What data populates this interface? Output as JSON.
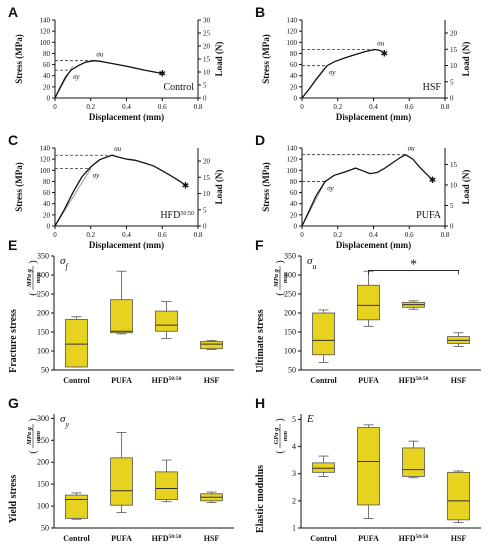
{
  "colors": {
    "box_fill": "#e6d21f",
    "box_stroke": "#555555",
    "curve": "#111111",
    "fit_line": "#9a9a9a",
    "dash": "#333333"
  },
  "chart_data": [
    {
      "panel": "A",
      "type": "line",
      "xlabel": "Displacement (mm)",
      "ylabel": "Stress (MPa)",
      "ylabel_right": "Load (N)",
      "xticks": [
        "0",
        "0.2",
        "0.4",
        "0.6",
        "0.8"
      ],
      "yticks": [
        "0",
        "20",
        "40",
        "60",
        "80",
        "100",
        "120",
        "140"
      ],
      "yticks_right": [
        "0",
        "5",
        "10",
        "15",
        "20",
        "25",
        "30"
      ],
      "xlim": [
        0,
        0.8
      ],
      "ylim": [
        0,
        140
      ],
      "ylim_right": [
        0,
        30
      ],
      "curve_label": "Control",
      "sigma_u_label": "σu",
      "sigma_y_label": "σy",
      "sigma_u": {
        "x": 0.22,
        "y": 67
      },
      "sigma_y": {
        "x": 0.09,
        "y": 50
      },
      "series": [
        {
          "x": [
            0,
            0.03,
            0.06,
            0.09,
            0.13,
            0.17,
            0.2,
            0.22,
            0.25,
            0.3,
            0.4,
            0.5,
            0.6
          ],
          "y": [
            0,
            20,
            38,
            50,
            58,
            64,
            66,
            67,
            66,
            63,
            57,
            50,
            44
          ]
        }
      ],
      "fit_line": {
        "x": [
          0,
          0.1
        ],
        "y": [
          0,
          58
        ]
      }
    },
    {
      "panel": "B",
      "type": "line",
      "xlabel": "Displacement (mm)",
      "ylabel": "Stress (MPa)",
      "ylabel_right": "Load (N)",
      "xticks": [
        "0",
        "0.2",
        "0.4",
        "0.6",
        "0.8"
      ],
      "yticks": [
        "0",
        "20",
        "40",
        "60",
        "80",
        "100",
        "120",
        "140"
      ],
      "yticks_right": [
        "0",
        "5",
        "10",
        "15",
        "20"
      ],
      "xlim": [
        0,
        0.8
      ],
      "ylim": [
        0,
        140
      ],
      "ylim_right": [
        0,
        24
      ],
      "curve_label": "HSF",
      "sigma_u_label": "σu",
      "sigma_y_label": "σy",
      "sigma_u": {
        "x": 0.41,
        "y": 87
      },
      "sigma_y": {
        "x": 0.14,
        "y": 58
      },
      "series": [
        {
          "x": [
            0,
            0.04,
            0.08,
            0.12,
            0.14,
            0.18,
            0.24,
            0.3,
            0.36,
            0.41,
            0.44,
            0.46
          ],
          "y": [
            0,
            16,
            34,
            50,
            58,
            65,
            72,
            78,
            84,
            87,
            85,
            80
          ]
        }
      ],
      "fit_line": {
        "x": [
          0,
          0.14
        ],
        "y": [
          0,
          57
        ]
      }
    },
    {
      "panel": "C",
      "type": "line",
      "xlabel": "Displacement (mm)",
      "ylabel": "Stress (MPa)",
      "ylabel_right": "Load (N)",
      "xticks": [
        "0",
        "0.2",
        "0.4",
        "0.6",
        "0.8"
      ],
      "yticks": [
        "0",
        "20",
        "40",
        "60",
        "80",
        "100",
        "120",
        "140"
      ],
      "yticks_right": [
        "0",
        "5",
        "10",
        "15",
        "20"
      ],
      "xlim": [
        0,
        0.8
      ],
      "ylim": [
        0,
        140
      ],
      "ylim_right": [
        0,
        24
      ],
      "curve_label": "HFD",
      "curve_label_sup": "50:50",
      "sigma_u_label": "σu",
      "sigma_y_label": "σy",
      "sigma_u": {
        "x": 0.32,
        "y": 127
      },
      "sigma_y": {
        "x": 0.2,
        "y": 103
      },
      "series": [
        {
          "x": [
            0,
            0.05,
            0.1,
            0.15,
            0.2,
            0.25,
            0.3,
            0.32,
            0.35,
            0.4,
            0.45,
            0.5,
            0.55,
            0.6,
            0.65,
            0.7,
            0.73
          ],
          "y": [
            0,
            28,
            60,
            88,
            106,
            119,
            125,
            127,
            124,
            120,
            118,
            113,
            108,
            99,
            90,
            80,
            73
          ]
        }
      ],
      "fit_line": {
        "x": [
          0,
          0.2
        ],
        "y": [
          0,
          103
        ]
      }
    },
    {
      "panel": "D",
      "type": "line",
      "xlabel": "Displacement (mm)",
      "ylabel": "Stress (MPa)",
      "ylabel_right": "Load (N)",
      "xticks": [
        "0",
        "0.2",
        "0.4",
        "0.6",
        "0.8"
      ],
      "yticks": [
        "0",
        "20",
        "40",
        "60",
        "80",
        "100",
        "120",
        "140"
      ],
      "yticks_right": [
        "0",
        "5",
        "10",
        "15"
      ],
      "xlim": [
        0,
        0.8
      ],
      "ylim": [
        0,
        140
      ],
      "ylim_right": [
        0,
        19
      ],
      "curve_label": "PUFA",
      "sigma_u_label": "σu",
      "sigma_y_label": "σy",
      "sigma_u": {
        "x": 0.58,
        "y": 128
      },
      "sigma_y": {
        "x": 0.13,
        "y": 80
      },
      "series": [
        {
          "x": [
            0,
            0.04,
            0.08,
            0.13,
            0.18,
            0.24,
            0.3,
            0.34,
            0.38,
            0.42,
            0.46,
            0.5,
            0.55,
            0.58,
            0.62,
            0.66,
            0.7,
            0.73
          ],
          "y": [
            0,
            27,
            55,
            80,
            91,
            97,
            104,
            99,
            94,
            96,
            103,
            112,
            123,
            128,
            120,
            105,
            92,
            83
          ]
        }
      ],
      "fit_line": {
        "x": [
          0,
          0.13
        ],
        "y": [
          0,
          80
        ]
      }
    },
    {
      "panel": "E",
      "type": "box",
      "symbol_main": "σ",
      "symbol_sub": "f",
      "ylabel": "Fracture stress",
      "ylabel_unit_num": "MPa g",
      "ylabel_unit_den": "mm",
      "categories": [
        "Control",
        "PUFA",
        "HFD",
        "HSF"
      ],
      "category_sup": {
        "HFD": "50:50"
      },
      "yticks": [
        "50",
        "100",
        "150",
        "200",
        "250",
        "300",
        "350"
      ],
      "ylim": [
        50,
        350
      ],
      "boxes": [
        {
          "min": 58,
          "q1": 58,
          "median": 118,
          "q3": 183,
          "max": 190
        },
        {
          "min": 145,
          "q1": 148,
          "median": 152,
          "q3": 235,
          "max": 310
        },
        {
          "min": 133,
          "q1": 152,
          "median": 168,
          "q3": 205,
          "max": 230
        },
        {
          "min": 104,
          "q1": 106,
          "median": 118,
          "q3": 125,
          "max": 128
        }
      ]
    },
    {
      "panel": "F",
      "type": "box",
      "symbol_main": "σ",
      "symbol_sub": "u",
      "ylabel": "Ultimate stress",
      "ylabel_unit_num": "MPa g",
      "ylabel_unit_den": "mm",
      "categories": [
        "Control",
        "PUFA",
        "HFD",
        "HSF"
      ],
      "category_sup": {
        "HFD": "50:50"
      },
      "yticks": [
        "50",
        "100",
        "150",
        "200",
        "250",
        "300",
        "350"
      ],
      "ylim": [
        50,
        350
      ],
      "boxes": [
        {
          "min": 70,
          "q1": 90,
          "median": 128,
          "q3": 200,
          "max": 208
        },
        {
          "min": 165,
          "q1": 182,
          "median": 220,
          "q3": 273,
          "max": 310
        },
        {
          "min": 210,
          "q1": 215,
          "median": 222,
          "q3": 228,
          "max": 232
        },
        {
          "min": 112,
          "q1": 120,
          "median": 128,
          "q3": 138,
          "max": 148
        }
      ],
      "significance": {
        "from": 1,
        "to": 3,
        "label": "*",
        "y": 312
      }
    },
    {
      "panel": "G",
      "type": "box",
      "symbol_main": "σ",
      "symbol_sub": "y",
      "ylabel": "Yield stress",
      "ylabel_unit_num": "MPa g",
      "ylabel_unit_den": "mm",
      "categories": [
        "Control",
        "PUFA",
        "HFD",
        "HSF"
      ],
      "category_sup": {
        "HFD": "50:50"
      },
      "yticks": [
        "50",
        "100",
        "150",
        "200",
        "250",
        "300"
      ],
      "ylim": [
        50,
        310
      ],
      "boxes": [
        {
          "min": 70,
          "q1": 72,
          "median": 115,
          "q3": 125,
          "max": 130
        },
        {
          "min": 85,
          "q1": 102,
          "median": 135,
          "q3": 210,
          "max": 268
        },
        {
          "min": 110,
          "q1": 115,
          "median": 140,
          "q3": 178,
          "max": 205
        },
        {
          "min": 108,
          "q1": 112,
          "median": 120,
          "q3": 128,
          "max": 132
        }
      ]
    },
    {
      "panel": "H",
      "type": "box",
      "symbol_main": "E",
      "symbol_sub": "",
      "ylabel": "Elastic modulus",
      "ylabel_unit_num": "GPa g",
      "ylabel_unit_den": "mm",
      "categories": [
        "Control",
        "PUFA",
        "HFD",
        "HSF"
      ],
      "category_sup": {
        "HFD": "50:50"
      },
      "yticks": [
        "1",
        "2",
        "3",
        "4",
        "5"
      ],
      "ylim": [
        1,
        5.2
      ],
      "boxes": [
        {
          "min": 2.9,
          "q1": 3.05,
          "median": 3.2,
          "q3": 3.4,
          "max": 3.65
        },
        {
          "min": 1.35,
          "q1": 1.85,
          "median": 3.45,
          "q3": 4.7,
          "max": 4.8
        },
        {
          "min": 2.85,
          "q1": 2.9,
          "median": 3.15,
          "q3": 3.95,
          "max": 4.2
        },
        {
          "min": 1.2,
          "q1": 1.3,
          "median": 2.0,
          "q3": 3.05,
          "max": 3.1
        }
      ]
    }
  ]
}
